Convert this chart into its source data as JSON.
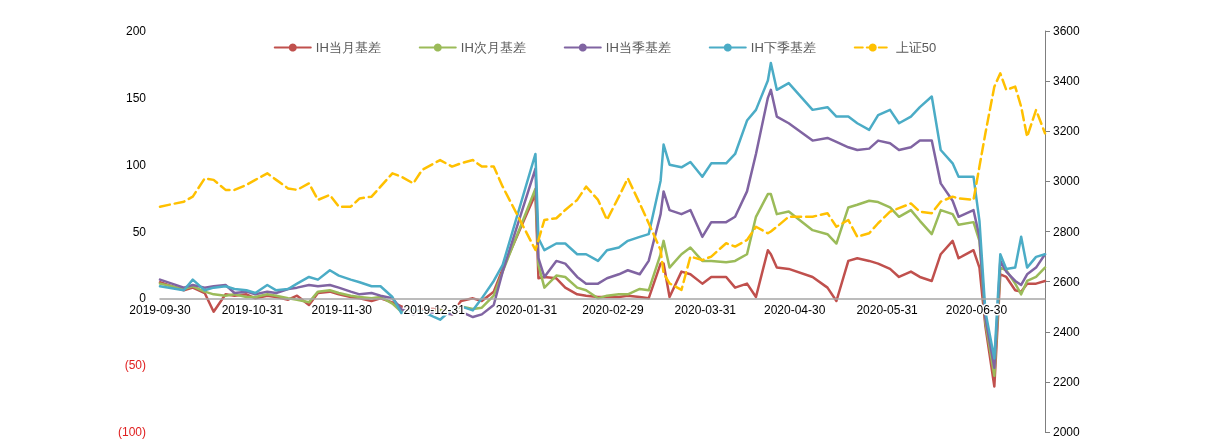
{
  "chart_data": {
    "type": "line",
    "legend": "top",
    "grid": false,
    "marker": "none",
    "line_style": "solid",
    "x": [
      "2019-09-30",
      "2019-10-08",
      "2019-10-11",
      "2019-10-15",
      "2019-10-18",
      "2019-10-22",
      "2019-10-25",
      "2019-10-29",
      "2019-11-01",
      "2019-11-05",
      "2019-11-08",
      "2019-11-12",
      "2019-11-15",
      "2019-11-19",
      "2019-11-22",
      "2019-11-26",
      "2019-11-29",
      "2019-12-03",
      "2019-12-06",
      "2019-12-10",
      "2019-12-13",
      "2019-12-17",
      "2019-12-20",
      "2019-12-24",
      "2019-12-27",
      "2020-01-02",
      "2020-01-06",
      "2020-01-09",
      "2020-01-13",
      "2020-01-16",
      "2020-01-20",
      "2020-01-23",
      "2020-02-03",
      "2020-02-04",
      "2020-02-06",
      "2020-02-10",
      "2020-02-13",
      "2020-02-17",
      "2020-02-20",
      "2020-02-24",
      "2020-02-27",
      "2020-03-02",
      "2020-03-05",
      "2020-03-09",
      "2020-03-12",
      "2020-03-16",
      "2020-03-17",
      "2020-03-19",
      "2020-03-23",
      "2020-03-26",
      "2020-03-30",
      "2020-04-02",
      "2020-04-07",
      "2020-04-10",
      "2020-04-14",
      "2020-04-17",
      "2020-04-21",
      "2020-04-22",
      "2020-04-24",
      "2020-04-28",
      "2020-05-06",
      "2020-05-11",
      "2020-05-14",
      "2020-05-18",
      "2020-05-21",
      "2020-05-25",
      "2020-05-28",
      "2020-06-01",
      "2020-06-04",
      "2020-06-08",
      "2020-06-11",
      "2020-06-15",
      "2020-06-18",
      "2020-06-22",
      "2020-06-24",
      "2020-06-29",
      "2020-07-01",
      "2020-07-03",
      "2020-07-06",
      "2020-07-08",
      "2020-07-10",
      "2020-07-13",
      "2020-07-15",
      "2020-07-17",
      "2020-07-20",
      "2020-07-23"
    ],
    "xlim": [
      "2019-09-30",
      "2020-07-23"
    ],
    "xticks": [
      "2019-09-30",
      "2019-10-31",
      "2019-11-30",
      "2019-12-31",
      "2020-01-31",
      "2020-02-29",
      "2020-03-31",
      "2020-04-30",
      "2020-05-31",
      "2020-06-30"
    ],
    "ylim": [
      -100,
      200
    ],
    "yticks": [
      {
        "value": -100,
        "label": "(100)"
      },
      {
        "value": -50,
        "label": "(50)"
      },
      0,
      50,
      100,
      150,
      200
    ],
    "y2lim": [
      2000,
      3600
    ],
    "y2ticks": [
      2000,
      2200,
      2400,
      2600,
      2800,
      3000,
      3200,
      3400,
      3600
    ],
    "series": [
      {
        "name": "IH当月基差",
        "color": "#c0504d",
        "values": [
          12,
          6,
          8,
          4,
          -10,
          3,
          2,
          3,
          0,
          2,
          1,
          -1,
          2,
          -5,
          4,
          5,
          3,
          1,
          0,
          -2,
          0,
          -3,
          -6,
          -10,
          -8,
          -8,
          -12,
          -2,
          0,
          -2,
          5,
          22,
          78,
          15,
          16,
          15,
          8,
          3,
          2,
          1,
          1,
          1,
          2,
          1,
          0,
          26,
          26,
          1,
          20,
          18,
          11,
          16,
          16,
          8,
          11,
          1,
          36,
          33,
          23,
          22,
          16,
          8,
          -2,
          28,
          30,
          28,
          26,
          22,
          16,
          20,
          16,
          13,
          33,
          43,
          30,
          36,
          23,
          -21,
          -66,
          18,
          16,
          6,
          5,
          11,
          11,
          13
        ]
      },
      {
        "name": "IH次月基差",
        "color": "#9bbb59",
        "values": [
          11,
          7,
          9,
          5,
          3,
          2,
          3,
          1,
          1,
          3,
          2,
          0,
          -1,
          -3,
          5,
          6,
          4,
          2,
          1,
          0,
          1,
          -4,
          -10,
          -8,
          -10,
          -9,
          -10,
          -6,
          -8,
          -7,
          2,
          20,
          82,
          25,
          8,
          17,
          16,
          8,
          6,
          0,
          2,
          3,
          3,
          7,
          6,
          33,
          43,
          23,
          33,
          38,
          28,
          28,
          27,
          28,
          33,
          61,
          78,
          78,
          63,
          65,
          51,
          48,
          41,
          68,
          70,
          73,
          72,
          68,
          61,
          66,
          58,
          48,
          66,
          63,
          55,
          57,
          43,
          -18,
          -58,
          23,
          21,
          11,
          3,
          13,
          16,
          23
        ]
      },
      {
        "name": "IH当季基差",
        "color": "#8064a2",
        "values": [
          14,
          8,
          10,
          8,
          9,
          10,
          4,
          5,
          3,
          5,
          4,
          7,
          8,
          10,
          9,
          10,
          8,
          5,
          3,
          4,
          2,
          0,
          -8,
          -12,
          -10,
          -11,
          -12,
          -10,
          -14,
          -12,
          -5,
          20,
          97,
          30,
          16,
          28,
          26,
          16,
          11,
          11,
          15,
          18,
          21,
          18,
          28,
          63,
          80,
          66,
          63,
          66,
          46,
          57,
          57,
          61,
          80,
          108,
          150,
          156,
          136,
          131,
          118,
          120,
          117,
          113,
          111,
          112,
          118,
          116,
          111,
          113,
          118,
          118,
          86,
          73,
          61,
          66,
          46,
          -15,
          -52,
          28,
          20,
          13,
          10,
          18,
          23,
          33
        ]
      },
      {
        "name": "IH下季基差",
        "color": "#4bacc6",
        "values": [
          9,
          6,
          14,
          6,
          8,
          9,
          7,
          6,
          4,
          10,
          6,
          7,
          11,
          16,
          14,
          21,
          17,
          14,
          12,
          9,
          9,
          1,
          -11,
          -9,
          -10,
          -16,
          -8,
          -6,
          -9,
          0,
          13,
          25,
          108,
          45,
          36,
          41,
          41,
          33,
          33,
          28,
          36,
          38,
          43,
          46,
          48,
          88,
          115,
          100,
          98,
          102,
          91,
          101,
          101,
          108,
          133,
          141,
          163,
          176,
          156,
          161,
          141,
          143,
          136,
          136,
          131,
          126,
          137,
          141,
          131,
          136,
          143,
          151,
          111,
          101,
          91,
          91,
          58,
          -10,
          -45,
          33,
          22,
          23,
          46,
          23,
          31,
          33
        ]
      },
      {
        "name": "上证50",
        "color": "#ffc000",
        "axis": "y2",
        "line_style": "dashed",
        "values": [
          2899,
          2919,
          2939,
          3012,
          3006,
          2966,
          2966,
          2986,
          3006,
          3032,
          3006,
          2972,
          2966,
          2992,
          2926,
          2946,
          2899,
          2899,
          2932,
          2939,
          2979,
          3032,
          3019,
          2992,
          3046,
          3085,
          3059,
          3072,
          3085,
          3059,
          3059,
          2979,
          2726,
          2766,
          2846,
          2853,
          2886,
          2926,
          2979,
          2926,
          2846,
          2939,
          3012,
          2912,
          2833,
          2726,
          2633,
          2593,
          2567,
          2700,
          2686,
          2700,
          2753,
          2740,
          2766,
          2819,
          2793,
          2800,
          2819,
          2859,
          2859,
          2873,
          2819,
          2846,
          2779,
          2793,
          2833,
          2879,
          2893,
          2912,
          2879,
          2873,
          2919,
          2939,
          2932,
          2926,
          3059,
          3192,
          3378,
          3431,
          3365,
          3378,
          3298,
          3178,
          3285,
          3192
        ]
      }
    ]
  }
}
